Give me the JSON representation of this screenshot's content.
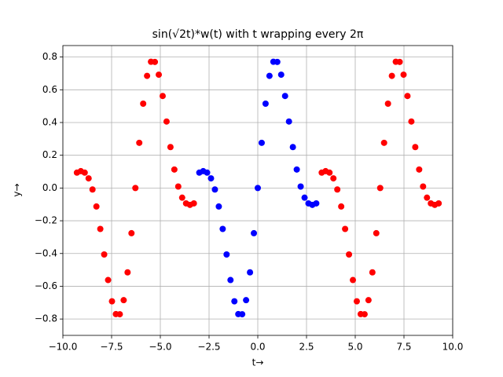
{
  "chart_data": {
    "type": "scatter",
    "title": "sin(√2t)*w(t) with t wrapping every 2π",
    "xlabel": "t→",
    "ylabel": "y→",
    "xlim": [
      -10,
      10
    ],
    "ylim": [
      -0.9,
      0.87
    ],
    "grid": true,
    "xticks": [
      {
        "value": -10,
        "label": "−10.0"
      },
      {
        "value": -7.5,
        "label": "−7.5"
      },
      {
        "value": -5,
        "label": "−5.0"
      },
      {
        "value": -2.5,
        "label": "−2.5"
      },
      {
        "value": 0,
        "label": "0.0"
      },
      2.5,
      {
        "value": 5,
        "label": "5.0"
      },
      7.5,
      {
        "value": 10,
        "label": "10.0"
      }
    ],
    "yticks": [
      {
        "value": -0.8,
        "label": "−0.8"
      },
      {
        "value": -0.6,
        "label": "−0.6"
      },
      {
        "value": -0.4,
        "label": "−0.4"
      },
      {
        "value": -0.2,
        "label": "−0.2"
      },
      {
        "value": 0,
        "label": "0.0"
      },
      0.2,
      0.4,
      0.6,
      0.8
    ],
    "series": [
      {
        "color": "#ff0000",
        "x": [
          -9.28,
          -9.08,
          -8.88,
          -8.68,
          -8.48,
          -8.28,
          -8.08,
          -7.88,
          -7.68,
          -7.48,
          -7.28,
          -7.08,
          -6.88,
          -6.68,
          -6.48,
          -6.28,
          -6.08,
          -5.88,
          -5.68,
          -5.48,
          -5.28,
          -5.08,
          -4.88,
          -4.68,
          -4.48,
          -4.28,
          -4.08,
          -3.88,
          -3.68,
          -3.48,
          -3.28
        ],
        "values": [
          0.094,
          0.103,
          0.094,
          0.059,
          -0.009,
          -0.113,
          -0.25,
          -0.406,
          -0.562,
          -0.692,
          -0.77,
          -0.771,
          -0.685,
          -0.515,
          -0.276,
          0,
          0.276,
          0.515,
          0.685,
          0.771,
          0.77,
          0.692,
          0.562,
          0.406,
          0.25,
          0.113,
          0.009,
          -0.059,
          -0.094,
          -0.103,
          -0.094
        ]
      },
      {
        "color": "#0000ff",
        "x": [
          -3,
          -2.8,
          -2.6,
          -2.4,
          -2.2,
          -2,
          -1.8,
          -1.6,
          -1.4,
          -1.2,
          -1,
          -0.8,
          -0.6,
          -0.4,
          -0.2,
          0,
          0.2,
          0.4,
          0.6,
          0.8,
          1,
          1.2,
          1.4,
          1.6,
          1.8,
          2,
          2.2,
          2.4,
          2.6,
          2.8,
          3
        ],
        "values": [
          0.094,
          0.103,
          0.094,
          0.059,
          -0.009,
          -0.113,
          -0.25,
          -0.406,
          -0.562,
          -0.692,
          -0.77,
          -0.771,
          -0.685,
          -0.515,
          -0.276,
          0,
          0.276,
          0.515,
          0.685,
          0.771,
          0.77,
          0.692,
          0.562,
          0.406,
          0.25,
          0.113,
          0.009,
          -0.059,
          -0.094,
          -0.103,
          -0.094
        ]
      },
      {
        "color": "#ff0000",
        "x": [
          3.28,
          3.48,
          3.68,
          3.88,
          4.08,
          4.28,
          4.48,
          4.68,
          4.88,
          5.08,
          5.28,
          5.48,
          5.68,
          5.88,
          6.08,
          6.28,
          6.48,
          6.68,
          6.88,
          7.08,
          7.28,
          7.48,
          7.68,
          7.88,
          8.08,
          8.28,
          8.48,
          8.68,
          8.88,
          9.08,
          9.28
        ],
        "values": [
          0.094,
          0.103,
          0.094,
          0.059,
          -0.009,
          -0.113,
          -0.25,
          -0.406,
          -0.562,
          -0.692,
          -0.77,
          -0.771,
          -0.685,
          -0.515,
          -0.276,
          0,
          0.276,
          0.515,
          0.685,
          0.771,
          0.77,
          0.692,
          0.562,
          0.406,
          0.25,
          0.113,
          0.009,
          -0.059,
          -0.094,
          -0.103,
          -0.094
        ]
      }
    ]
  }
}
